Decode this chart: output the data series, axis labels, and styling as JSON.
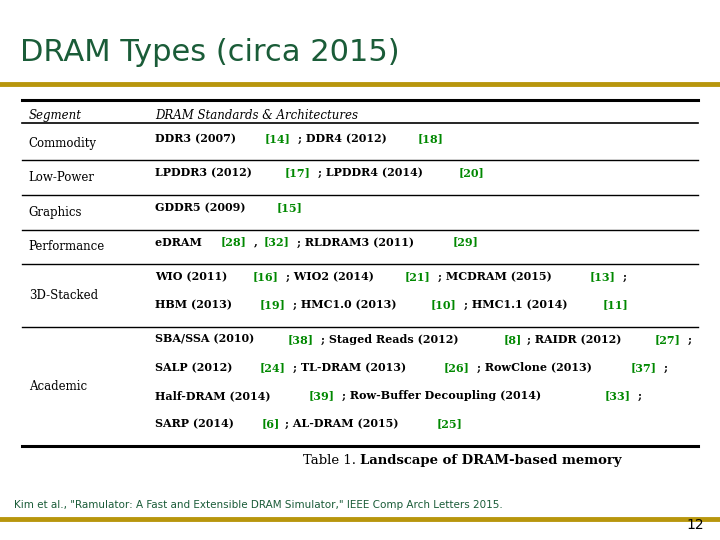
{
  "title": "DRAM Types (circa 2015)",
  "title_color": "#1a5276",
  "title_color2": "#1a5c38",
  "title_fontsize": 22,
  "bg_color": "#ffffff",
  "gold_line_color": "#b8960c",
  "table_header": [
    "Segment",
    "DRAM Standards & Architectures"
  ],
  "rows": [
    {
      "segment": "Commodity",
      "lines": [
        [
          {
            "text": "DDR3 (2007) ",
            "color": "#000000",
            "bold": true
          },
          {
            "text": "[14]",
            "color": "#008800",
            "bold": true
          },
          {
            "text": "; DDR4 (2012) ",
            "color": "#000000",
            "bold": true
          },
          {
            "text": "[18]",
            "color": "#008800",
            "bold": true
          }
        ]
      ]
    },
    {
      "segment": "Low-Power",
      "lines": [
        [
          {
            "text": "LPDDR3 (2012) ",
            "color": "#000000",
            "bold": true
          },
          {
            "text": "[17]",
            "color": "#008800",
            "bold": true
          },
          {
            "text": "; LPDDR4 (2014) ",
            "color": "#000000",
            "bold": true
          },
          {
            "text": "[20]",
            "color": "#008800",
            "bold": true
          }
        ]
      ]
    },
    {
      "segment": "Graphics",
      "lines": [
        [
          {
            "text": "GDDR5 (2009) ",
            "color": "#000000",
            "bold": true
          },
          {
            "text": "[15]",
            "color": "#008800",
            "bold": true
          }
        ]
      ]
    },
    {
      "segment": "Performance",
      "lines": [
        [
          {
            "text": "eDRAM ",
            "color": "#000000",
            "bold": true
          },
          {
            "text": "[28]",
            "color": "#008800",
            "bold": true
          },
          {
            "text": ", ",
            "color": "#000000",
            "bold": true
          },
          {
            "text": "[32]",
            "color": "#008800",
            "bold": true
          },
          {
            "text": "; RLDRAM3 (2011) ",
            "color": "#000000",
            "bold": true
          },
          {
            "text": "[29]",
            "color": "#008800",
            "bold": true
          }
        ]
      ]
    },
    {
      "segment": "3D-Stacked",
      "lines": [
        [
          {
            "text": "WIO (2011) ",
            "color": "#000000",
            "bold": true
          },
          {
            "text": "[16]",
            "color": "#008800",
            "bold": true
          },
          {
            "text": "; WIO2 (2014) ",
            "color": "#000000",
            "bold": true
          },
          {
            "text": "[21]",
            "color": "#008800",
            "bold": true
          },
          {
            "text": "; MCDRAM (2015) ",
            "color": "#000000",
            "bold": true
          },
          {
            "text": "[13]",
            "color": "#008800",
            "bold": true
          },
          {
            "text": ";",
            "color": "#000000",
            "bold": true
          }
        ],
        [
          {
            "text": "HBM (2013) ",
            "color": "#000000",
            "bold": true
          },
          {
            "text": "[19]",
            "color": "#008800",
            "bold": true
          },
          {
            "text": "; HMC1.0 (2013) ",
            "color": "#000000",
            "bold": true
          },
          {
            "text": "[10]",
            "color": "#008800",
            "bold": true
          },
          {
            "text": "; HMC1.1 (2014) ",
            "color": "#000000",
            "bold": true
          },
          {
            "text": "[11]",
            "color": "#008800",
            "bold": true
          }
        ]
      ]
    },
    {
      "segment": "Academic",
      "lines": [
        [
          {
            "text": "SBA/SSA (2010) ",
            "color": "#000000",
            "bold": true
          },
          {
            "text": "[38]",
            "color": "#008800",
            "bold": true
          },
          {
            "text": "; Staged Reads (2012) ",
            "color": "#000000",
            "bold": true
          },
          {
            "text": "[8]",
            "color": "#008800",
            "bold": true
          },
          {
            "text": "; RAIDR (2012) ",
            "color": "#000000",
            "bold": true
          },
          {
            "text": "[27]",
            "color": "#008800",
            "bold": true
          },
          {
            "text": ";",
            "color": "#000000",
            "bold": true
          }
        ],
        [
          {
            "text": "SALP (2012) ",
            "color": "#000000",
            "bold": true
          },
          {
            "text": "[24]",
            "color": "#008800",
            "bold": true
          },
          {
            "text": "; TL-DRAM (2013) ",
            "color": "#000000",
            "bold": true
          },
          {
            "text": "[26]",
            "color": "#008800",
            "bold": true
          },
          {
            "text": "; RowClone (2013) ",
            "color": "#000000",
            "bold": true
          },
          {
            "text": "[37]",
            "color": "#008800",
            "bold": true
          },
          {
            "text": ";",
            "color": "#000000",
            "bold": true
          }
        ],
        [
          {
            "text": "Half-DRAM (2014) ",
            "color": "#000000",
            "bold": true
          },
          {
            "text": "[39]",
            "color": "#008800",
            "bold": true
          },
          {
            "text": "; Row-Buffer Decoupling (2014) ",
            "color": "#000000",
            "bold": true
          },
          {
            "text": "[33]",
            "color": "#008800",
            "bold": true
          },
          {
            "text": ";",
            "color": "#000000",
            "bold": true
          }
        ],
        [
          {
            "text": "SARP (2014) ",
            "color": "#000000",
            "bold": true
          },
          {
            "text": "[6]",
            "color": "#008800",
            "bold": true
          },
          {
            "text": "; AL-DRAM (2015) ",
            "color": "#000000",
            "bold": true
          },
          {
            "text": "[25]",
            "color": "#008800",
            "bold": true
          }
        ]
      ]
    }
  ],
  "table_caption_normal": "Table 1. ",
  "table_caption_bold": "Landscape of DRAM-based memory",
  "citation": "Kim et al., \"Ramulator: A Fast and Extensible DRAM Simulator,\" IEEE Comp Arch Letters 2015.",
  "slide_number": "12",
  "fs_content": 8.0,
  "fs_header": 8.5,
  "fs_segment": 8.5
}
